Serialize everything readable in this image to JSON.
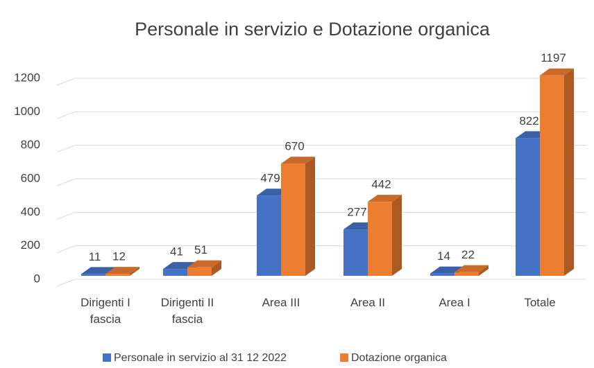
{
  "chart_data": {
    "type": "bar3d",
    "title": "Personale in servizio e Dotazione organica",
    "categories": [
      "Dirigenti I fascia",
      "Dirigenti II fascia",
      "Area III",
      "Area II",
      "Area I",
      "Totale"
    ],
    "series": [
      {
        "name": "Personale in servizio al 31 12 2022",
        "color": "#4472c4",
        "values": [
          11,
          41,
          479,
          277,
          14,
          822
        ]
      },
      {
        "name": "Dotazione organica",
        "color": "#ed7d31",
        "values": [
          12,
          51,
          670,
          442,
          22,
          1197
        ]
      }
    ],
    "ylim": [
      0,
      1200
    ],
    "yticks": [
      0,
      200,
      400,
      600,
      800,
      1000,
      1200
    ],
    "grid": true,
    "legend": "bottom"
  }
}
